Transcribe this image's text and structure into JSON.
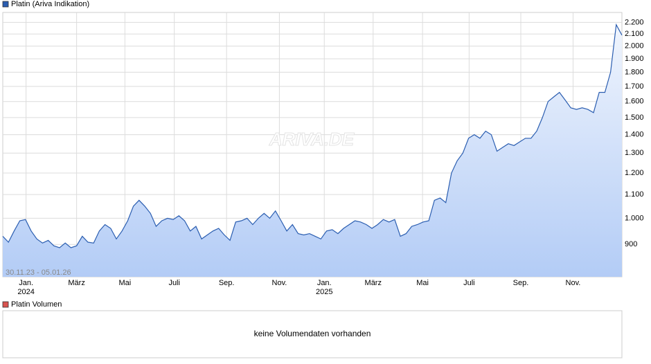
{
  "chart_data": {
    "type": "line",
    "title": "Platin (Ariva Indikation)",
    "watermark": "ARIVA.DE",
    "date_range": "30.11.23 - 05.01.26",
    "log_scale": true,
    "grid": true,
    "series": [
      {
        "name": "Platin (Ariva Indikation)",
        "color": "#2a5db0",
        "values": [
          930,
          908,
          950,
          990,
          995,
          950,
          920,
          905,
          915,
          895,
          888,
          905,
          888,
          895,
          930,
          908,
          905,
          950,
          975,
          960,
          920,
          950,
          990,
          1050,
          1075,
          1050,
          1020,
          968,
          990,
          1000,
          995,
          1010,
          990,
          950,
          968,
          920,
          935,
          950,
          960,
          935,
          915,
          985,
          990,
          1000,
          975,
          1000,
          1020,
          1000,
          1030,
          990,
          950,
          975,
          940,
          935,
          940,
          930,
          920,
          950,
          955,
          940,
          960,
          975,
          990,
          985,
          975,
          960,
          975,
          995,
          985,
          995,
          930,
          940,
          968,
          975,
          985,
          990,
          1075,
          1085,
          1065,
          1200,
          1260,
          1300,
          1380,
          1400,
          1380,
          1420,
          1400,
          1310,
          1330,
          1350,
          1340,
          1360,
          1380,
          1380,
          1420,
          1500,
          1600,
          1630,
          1660,
          1610,
          1560,
          1550,
          1560,
          1550,
          1530,
          1660,
          1660,
          1800,
          2180,
          2090
        ]
      }
    ],
    "xlim": [
      0,
      109
    ],
    "xticks": [
      {
        "value": 4.1,
        "label": "Jan."
      },
      {
        "value": 13.0,
        "label": "März"
      },
      {
        "value": 21.5,
        "label": "Mai"
      },
      {
        "value": 30.2,
        "label": "Juli"
      },
      {
        "value": 39.4,
        "label": "Sep."
      },
      {
        "value": 48.7,
        "label": "Nov."
      },
      {
        "value": 56.6,
        "label": "Jan."
      },
      {
        "value": 65.2,
        "label": "März"
      },
      {
        "value": 73.9,
        "label": "Mai"
      },
      {
        "value": 82.1,
        "label": "Juli"
      },
      {
        "value": 91.2,
        "label": "Sep."
      },
      {
        "value": 100.4,
        "label": "Nov."
      }
    ],
    "year_labels": [
      {
        "value": 4.1,
        "label": "2024"
      },
      {
        "value": 56.6,
        "label": "2025"
      }
    ],
    "ylim": [
      790,
      2290
    ],
    "yticks": [
      900,
      {
        "value": 1000,
        "label": "1.000"
      },
      {
        "value": 1100,
        "label": "1.100"
      },
      {
        "value": 1200,
        "label": "1.200"
      },
      {
        "value": 1300,
        "label": "1.300"
      },
      {
        "value": 1400,
        "label": "1.400"
      },
      {
        "value": 1500,
        "label": "1.500"
      },
      {
        "value": 1600,
        "label": "1.600"
      },
      {
        "value": 1700,
        "label": "1.700"
      },
      {
        "value": 1800,
        "label": "1.800"
      },
      {
        "value": 1900,
        "label": "1.900"
      },
      {
        "value": 2000,
        "label": "2.000"
      },
      {
        "value": 2100,
        "label": "2.100"
      },
      {
        "value": 2200,
        "label": "2.200"
      }
    ],
    "volume_panel": {
      "title": "Platin Volumen",
      "color": "#d9534f",
      "message": "keine Volumendaten vorhanden"
    }
  }
}
